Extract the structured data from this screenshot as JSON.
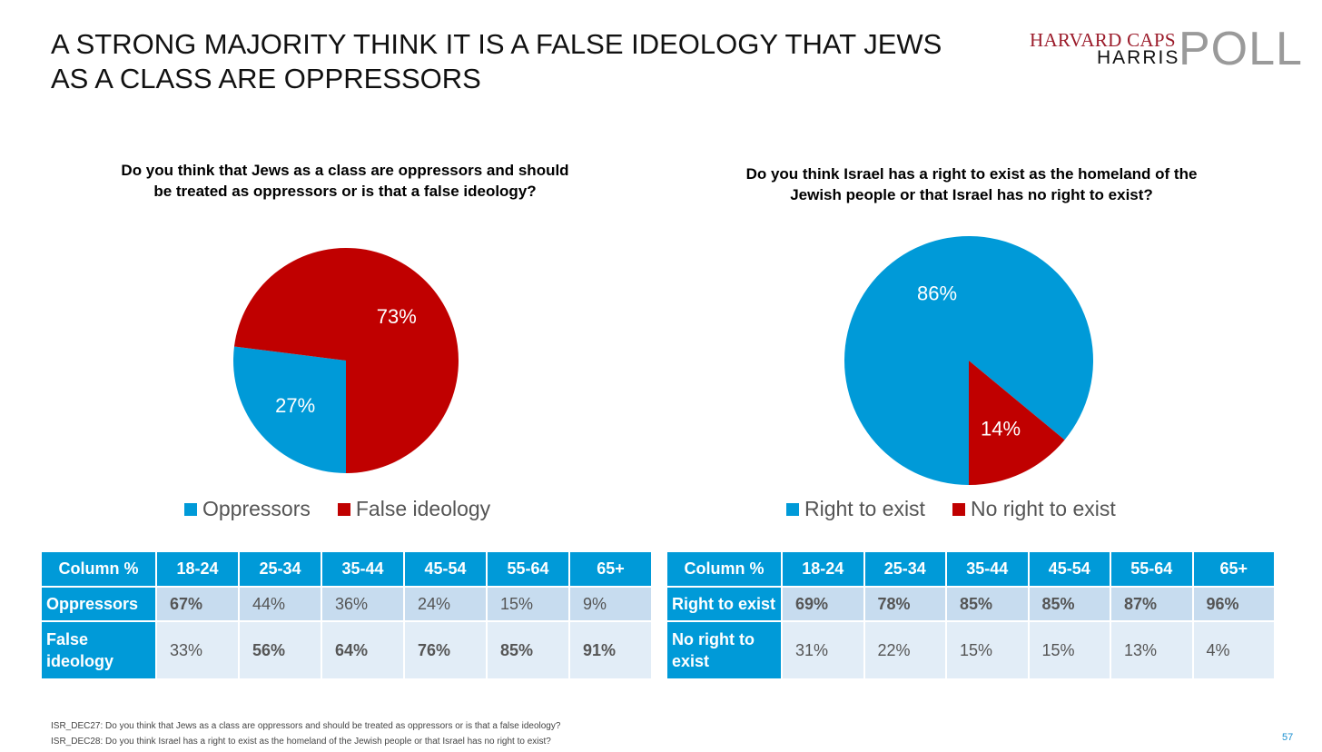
{
  "title": "A STRONG MAJORITY THINK IT IS A FALSE IDEOLOGY THAT JEWS AS A CLASS ARE OPPRESSORS",
  "logo": {
    "line1": "HARVARD CAPS",
    "line2": "HARRIS",
    "line3": "POLL"
  },
  "colors": {
    "blue": "#009ad8",
    "red": "#c00000"
  },
  "chart_data": [
    {
      "type": "pie",
      "title": "Do you think that Jews as a class are oppressors and should be treated as oppressors or is that a false ideology?",
      "labels": [
        "Oppressors",
        "False ideology"
      ],
      "values": [
        27,
        73
      ],
      "data_labels": [
        "27%",
        "73%"
      ],
      "colors": [
        "#009ad8",
        "#c00000"
      ],
      "legend": "bottom"
    },
    {
      "type": "pie",
      "title": "Do you think Israel has a right to exist as the homeland of the Jewish people or that Israel has no right to exist?",
      "labels": [
        "Right to exist",
        "No right to exist"
      ],
      "values": [
        86,
        14
      ],
      "data_labels": [
        "86%",
        "14%"
      ],
      "colors": [
        "#009ad8",
        "#c00000"
      ],
      "legend": "bottom"
    }
  ],
  "tables": [
    {
      "header": [
        "Column %",
        "18-24",
        "25-34",
        "35-44",
        "45-54",
        "55-64",
        "65+"
      ],
      "rows": [
        {
          "label": "Oppressors",
          "values": [
            "67%",
            "44%",
            "36%",
            "24%",
            "15%",
            "9%"
          ],
          "bold": [
            true,
            false,
            false,
            false,
            false,
            false
          ]
        },
        {
          "label": "False ideology",
          "values": [
            "33%",
            "56%",
            "64%",
            "76%",
            "85%",
            "91%"
          ],
          "bold": [
            false,
            true,
            true,
            true,
            true,
            true
          ]
        }
      ]
    },
    {
      "header": [
        "Column %",
        "18-24",
        "25-34",
        "35-44",
        "45-54",
        "55-64",
        "65+"
      ],
      "rows": [
        {
          "label": "Right to exist",
          "values": [
            "69%",
            "78%",
            "85%",
            "85%",
            "87%",
            "96%"
          ],
          "bold": [
            true,
            true,
            true,
            true,
            true,
            true
          ]
        },
        {
          "label": "No right to exist",
          "values": [
            "31%",
            "22%",
            "15%",
            "15%",
            "13%",
            "4%"
          ],
          "bold": [
            false,
            false,
            false,
            false,
            false,
            false
          ]
        }
      ]
    }
  ],
  "footnotes": [
    "ISR_DEC27: Do you think that Jews as a class are oppressors and should be treated as oppressors or is that a false ideology?",
    "ISR_DEC28: Do you think Israel has a right to exist as the homeland of the Jewish people or that Israel has no right to exist?"
  ],
  "page_number": "57"
}
